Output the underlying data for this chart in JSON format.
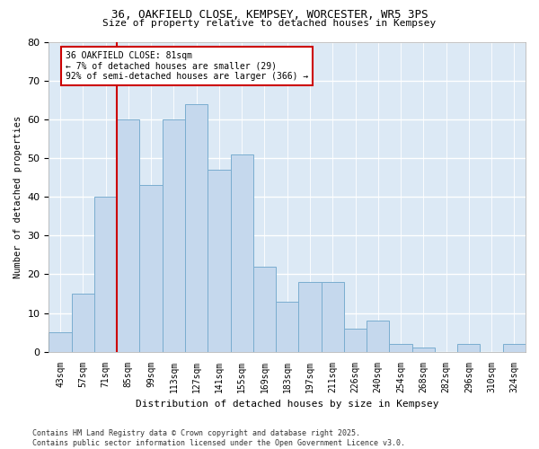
{
  "title1": "36, OAKFIELD CLOSE, KEMPSEY, WORCESTER, WR5 3PS",
  "title2": "Size of property relative to detached houses in Kempsey",
  "xlabel": "Distribution of detached houses by size in Kempsey",
  "ylabel": "Number of detached properties",
  "bar_values": [
    5,
    15,
    40,
    60,
    43,
    60,
    64,
    47,
    51,
    22,
    13,
    18,
    18,
    6,
    8,
    2,
    1,
    0,
    2,
    0,
    2
  ],
  "categories": [
    "43sqm",
    "57sqm",
    "71sqm",
    "85sqm",
    "99sqm",
    "113sqm",
    "127sqm",
    "141sqm",
    "155sqm",
    "169sqm",
    "183sqm",
    "197sqm",
    "211sqm",
    "226sqm",
    "240sqm",
    "254sqm",
    "268sqm",
    "282sqm",
    "296sqm",
    "310sqm",
    "324sqm"
  ],
  "bar_color": "#c5d8ed",
  "bar_edge_color": "#7aadcf",
  "grid_color": "#c8d8e8",
  "bg_color": "#dce9f5",
  "vline_color": "#cc0000",
  "vline_pos": 2.5,
  "annotation_line1": "36 OAKFIELD CLOSE: 81sqm",
  "annotation_line2": "← 7% of detached houses are smaller (29)",
  "annotation_line3": "92% of semi-detached houses are larger (366) →",
  "annotation_box_facecolor": "#ffffff",
  "annotation_box_edgecolor": "#cc0000",
  "footer_text": "Contains HM Land Registry data © Crown copyright and database right 2025.\nContains public sector information licensed under the Open Government Licence v3.0.",
  "ylim_max": 80,
  "yticks": [
    0,
    10,
    20,
    30,
    40,
    50,
    60,
    70,
    80
  ]
}
